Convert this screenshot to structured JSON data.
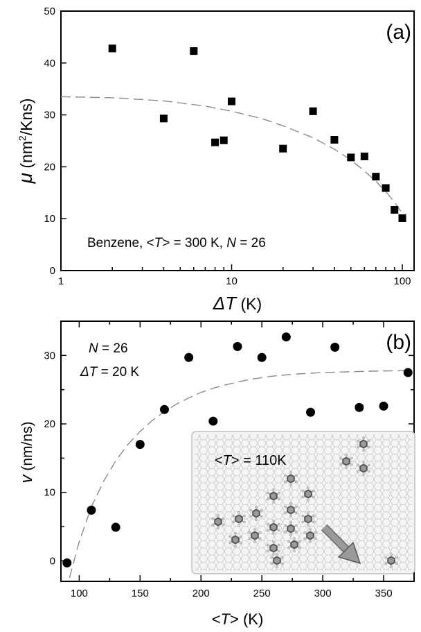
{
  "chart_data": [
    {
      "type": "scatter",
      "panel_label": "(a)",
      "x_scale": "log",
      "xlabel_sym": "ΔT",
      "xlabel_unit": " (K)",
      "ylabel_sym": "μ",
      "ylabel_unit": " (nm",
      "ylabel_sup": "2",
      "ylabel_unit2": "/Kns)",
      "xlim": [
        1,
        120
      ],
      "ylim": [
        0,
        50
      ],
      "xticks": [
        1,
        10,
        100
      ],
      "yticks": [
        0,
        10,
        20,
        30,
        40,
        50
      ],
      "annotation": {
        "pre": "Benzene, <",
        "T": "T",
        "mid": "> = 300 K, ",
        "N": "N",
        "post": " = 26"
      },
      "series": [
        {
          "marker": "square",
          "x": [
            2,
            4,
            6,
            8,
            9,
            10,
            20,
            30,
            40,
            50,
            60,
            70,
            80,
            90,
            100
          ],
          "y": [
            42.8,
            29.3,
            42.3,
            24.7,
            25.1,
            32.6,
            23.5,
            30.7,
            25.2,
            21.8,
            22.0,
            18.1,
            15.9,
            11.7,
            10.1
          ]
        }
      ],
      "fit": {
        "style": "dashed",
        "x": [
          1,
          2,
          4,
          7,
          10,
          15,
          20,
          30,
          40,
          50,
          60,
          70,
          80,
          90,
          100
        ],
        "y": [
          33.5,
          33.3,
          32.7,
          31.7,
          30.7,
          29.3,
          27.9,
          25.6,
          23.4,
          21.3,
          19.2,
          17.2,
          15.2,
          13.2,
          11.0
        ]
      }
    },
    {
      "type": "scatter",
      "panel_label": "(b)",
      "xlabel_pre": "<",
      "xlabel_sym": "T",
      "xlabel_post": "> (K)",
      "ylabel_sym": "v",
      "ylabel_unit": " (nm/ns)",
      "xlim": [
        85,
        375
      ],
      "ylim": [
        -3,
        35
      ],
      "xticks": [
        100,
        150,
        200,
        250,
        300,
        350
      ],
      "yticks": [
        0,
        10,
        20,
        30
      ],
      "annotation_1": {
        "sym": "N",
        "text": " = 26"
      },
      "annotation_2": {
        "sym": "ΔT",
        "text": " = 20 K"
      },
      "series": [
        {
          "marker": "circle",
          "x": [
            90,
            110,
            130,
            150,
            170,
            190,
            210,
            230,
            250,
            270,
            290,
            310,
            330,
            350,
            370
          ],
          "y": [
            -0.3,
            7.4,
            4.9,
            17.0,
            22.1,
            29.7,
            20.4,
            31.3,
            29.7,
            32.7,
            21.7,
            31.2,
            22.4,
            22.6,
            27.5
          ]
        }
      ],
      "fit": {
        "style": "dashed",
        "x": [
          92,
          100,
          110,
          120,
          130,
          140,
          150,
          160,
          170,
          180,
          190,
          200,
          210,
          220,
          240,
          260,
          280,
          300,
          320,
          340,
          360,
          370
        ],
        "y": [
          -2.5,
          2.8,
          7.9,
          11.6,
          14.6,
          17.0,
          18.9,
          20.5,
          21.8,
          22.9,
          23.8,
          24.6,
          25.2,
          25.7,
          26.5,
          27.0,
          27.3,
          27.5,
          27.6,
          27.7,
          27.75,
          27.8
        ]
      },
      "inset": {
        "label_pre": "<",
        "label_sym": "T",
        "label_post": "> = 110K",
        "molecule_count": 20
      }
    }
  ]
}
